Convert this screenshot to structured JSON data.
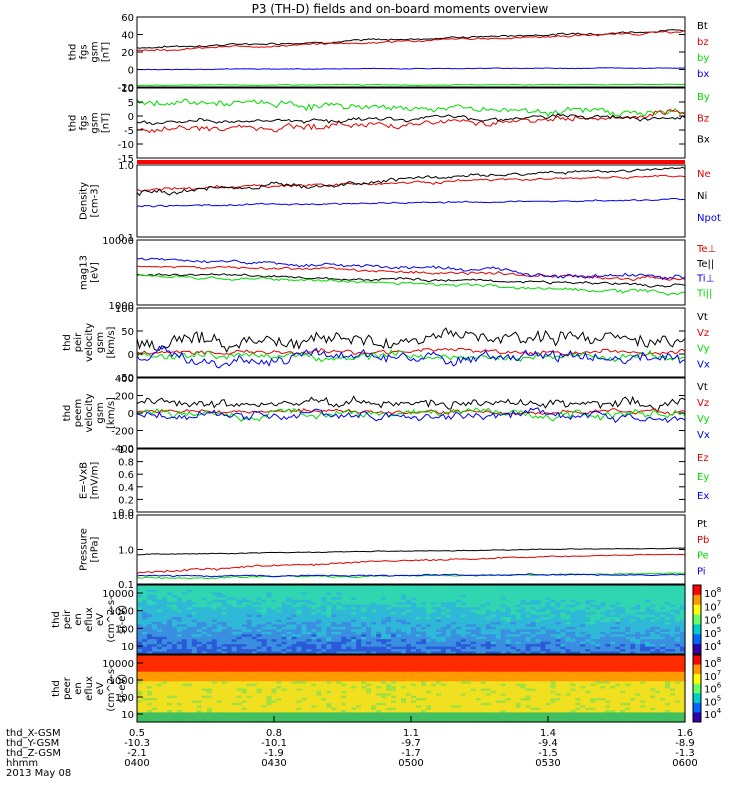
{
  "title": "P3 (TH-D) fields and on-board moments overview",
  "colors": {
    "black": "#000000",
    "red": "#e00000",
    "green": "#00dd00",
    "blue": "#0000ee",
    "flag": "#ff0000"
  },
  "chart_data": [
    {
      "type": "line",
      "id": "fgs1",
      "ylabel": [
        "thd",
        "fgs",
        "gsm",
        "[nT]"
      ],
      "ylim": [
        -20,
        60
      ],
      "yticks": [
        "60",
        "40",
        "20",
        "0",
        "-20"
      ],
      "series": [
        {
          "name": "Bt",
          "color": "#000000",
          "start": 25,
          "end": 45,
          "noise": 1.5
        },
        {
          "name": "bz",
          "color": "#e00000",
          "start": 22,
          "end": 43,
          "noise": 1.5
        },
        {
          "name": "by",
          "color": "#00dd00",
          "start": -18,
          "end": -17,
          "noise": 0.5
        },
        {
          "name": "bx",
          "color": "#0000ee",
          "start": 0,
          "end": 2,
          "noise": 0.5
        }
      ]
    },
    {
      "type": "line",
      "id": "fgs2",
      "ylabel": [
        "thd",
        "fgs",
        "gsm",
        "[nT]"
      ],
      "ylim": [
        -15,
        10
      ],
      "yticks": [
        "10",
        "5",
        "0",
        "-5",
        "-10",
        "-15"
      ],
      "series": [
        {
          "name": "By",
          "color": "#00dd00",
          "start": 5,
          "end": 1,
          "noise": 1.5
        },
        {
          "name": "Bz",
          "color": "#e00000",
          "start": -5,
          "end": 0,
          "noise": 1.5
        },
        {
          "name": "Bx",
          "color": "#000000",
          "start": -2,
          "end": 0,
          "noise": 1
        }
      ]
    },
    {
      "type": "line",
      "id": "dens",
      "ylabel": [
        "Density",
        "[cm-3]"
      ],
      "log": true,
      "ylim": [
        0.1,
        1.0
      ],
      "yticks": [
        "1.0",
        "0.1"
      ],
      "series": [
        {
          "name": "Ne",
          "color": "#e00000",
          "start": 0.45,
          "end": 0.7,
          "noise": 0.03
        },
        {
          "name": "Ni",
          "color": "#000000",
          "start": 0.4,
          "end": 0.9,
          "noise": 0.05
        },
        {
          "name": "Npot",
          "color": "#0000ee",
          "start": 0.27,
          "end": 0.33,
          "noise": 0.01
        }
      ]
    },
    {
      "type": "line",
      "id": "temp",
      "ylabel": [
        "mag13",
        "[eV]"
      ],
      "log": true,
      "ylim": [
        1000,
        10000
      ],
      "yticks": [
        "10000",
        "1000"
      ],
      "series": [
        {
          "name": "Te⊥",
          "color": "#e00000",
          "start": 4000,
          "end": 2500,
          "noise": 200
        },
        {
          "name": "Te||",
          "color": "#000000",
          "start": 3000,
          "end": 2000,
          "noise": 150
        },
        {
          "name": "Ti⊥",
          "color": "#0000ee",
          "start": 5000,
          "end": 2500,
          "noise": 300
        },
        {
          "name": "Ti||",
          "color": "#00dd00",
          "start": 2800,
          "end": 1500,
          "noise": 150
        }
      ]
    },
    {
      "type": "line",
      "id": "vpeir",
      "ylabel": [
        "thd",
        "peir",
        "velocity",
        "gsm",
        "[km/s]"
      ],
      "ylim": [
        -50,
        100
      ],
      "yticks": [
        "100",
        "50",
        "0",
        "-50"
      ],
      "series": [
        {
          "name": "Vt",
          "color": "#000000",
          "start": 30,
          "end": 30,
          "noise": 20
        },
        {
          "name": "Vz",
          "color": "#e00000",
          "start": 5,
          "end": 5,
          "noise": 6
        },
        {
          "name": "Vy",
          "color": "#00dd00",
          "start": -5,
          "end": -5,
          "noise": 10
        },
        {
          "name": "Vx",
          "color": "#0000ee",
          "start": -10,
          "end": -10,
          "noise": 15
        }
      ]
    },
    {
      "type": "line",
      "id": "vpeem",
      "ylabel": [
        "thd",
        "peem",
        "velocity",
        "gsm",
        "[km/s]"
      ],
      "ylim": [
        -400,
        400
      ],
      "yticks": [
        "400",
        "200",
        "0",
        "-200",
        "-400"
      ],
      "series": [
        {
          "name": "Vt",
          "color": "#000000",
          "start": 110,
          "end": 110,
          "noise": 70
        },
        {
          "name": "Vz",
          "color": "#e00000",
          "start": 20,
          "end": 20,
          "noise": 30
        },
        {
          "name": "Vy",
          "color": "#00dd00",
          "start": 0,
          "end": 0,
          "noise": 60
        },
        {
          "name": "Vx",
          "color": "#0000ee",
          "start": -20,
          "end": -20,
          "noise": 60
        }
      ]
    },
    {
      "type": "line",
      "id": "efield",
      "ylabel": [
        "E=-VxB",
        "[mV/m]"
      ],
      "ylim": [
        0,
        1.0
      ],
      "yticks": [
        "1.0",
        "0.8",
        "0.6",
        "0.4",
        "0.2",
        "0.0"
      ],
      "series": [
        {
          "name": "Ez",
          "color": "#e00000"
        },
        {
          "name": "Ey",
          "color": "#00dd00"
        },
        {
          "name": "Ex",
          "color": "#0000ee"
        }
      ]
    },
    {
      "type": "line",
      "id": "press",
      "ylabel": [
        "Pressure",
        "[nPa]"
      ],
      "log": true,
      "ylim": [
        0.1,
        10
      ],
      "yticks": [
        "10.0",
        "1.0",
        "0.1"
      ],
      "series": [
        {
          "name": "Pt",
          "color": "#000000",
          "start": 0.7,
          "end": 1.1,
          "noise": 0.03
        },
        {
          "name": "Pb",
          "color": "#e00000",
          "start": 0.2,
          "end": 0.75,
          "noise": 0.03
        },
        {
          "name": "Pe",
          "color": "#00dd00",
          "start": 0.15,
          "end": 0.2,
          "noise": 0.01
        },
        {
          "name": "Pi",
          "color": "#0000ee",
          "start": 0.17,
          "end": 0.19,
          "noise": 0.01
        }
      ]
    },
    {
      "type": "heatmap",
      "id": "ion",
      "ylabel": [
        "thd",
        "peir",
        "en",
        "eflux",
        "eV",
        "(cm^2-s-",
        "sr-eV)"
      ],
      "yticks": [
        "10000",
        "1000",
        "100",
        "10"
      ],
      "cbticks": [
        "10^8",
        "10^7",
        "10^6",
        "10^5",
        "10^4"
      ],
      "base": "cool"
    },
    {
      "type": "heatmap",
      "id": "ele",
      "ylabel": [
        "thd",
        "peer",
        "en",
        "eflux",
        "eV",
        "(cm^2-s-",
        "sr-eV)"
      ],
      "yticks": [
        "10000",
        "1000",
        "100",
        "10"
      ],
      "cbticks": [
        "10^8",
        "10^7",
        "10^6",
        "10^5",
        "10^4"
      ],
      "base": "hot"
    }
  ],
  "legends": [
    [
      "Bt",
      "bz",
      "by",
      "bx"
    ],
    [
      "By",
      "Bz",
      "Bx"
    ],
    [
      "Ne",
      "Ni",
      "Npot"
    ],
    [
      "Te⊥",
      "Te||",
      "Ti⊥",
      "Ti||"
    ],
    [
      "Vt",
      "Vz",
      "Vy",
      "Vx"
    ],
    [
      "Vt",
      "Vz",
      "Vy",
      "Vx"
    ],
    [
      "Ez",
      "Ey",
      "Ex"
    ],
    [
      "Pt",
      "Pb",
      "Pe",
      "Pi"
    ]
  ],
  "footer": {
    "labels": [
      "thd_X-GSM",
      "thd_Y-GSM",
      "thd_Z-GSM",
      "hhmm",
      "2013 May 08"
    ],
    "columns": [
      [
        "0.5",
        "-10.3",
        "-2.1",
        "0400"
      ],
      [
        "0.8",
        "-10.1",
        "-1.9",
        "0430"
      ],
      [
        "1.1",
        "-9.7",
        "-1.7",
        "0500"
      ],
      [
        "1.4",
        "-9.4",
        "-1.5",
        "0530"
      ],
      [
        "1.6",
        "-8.9",
        "-1.3",
        "0600"
      ]
    ]
  }
}
